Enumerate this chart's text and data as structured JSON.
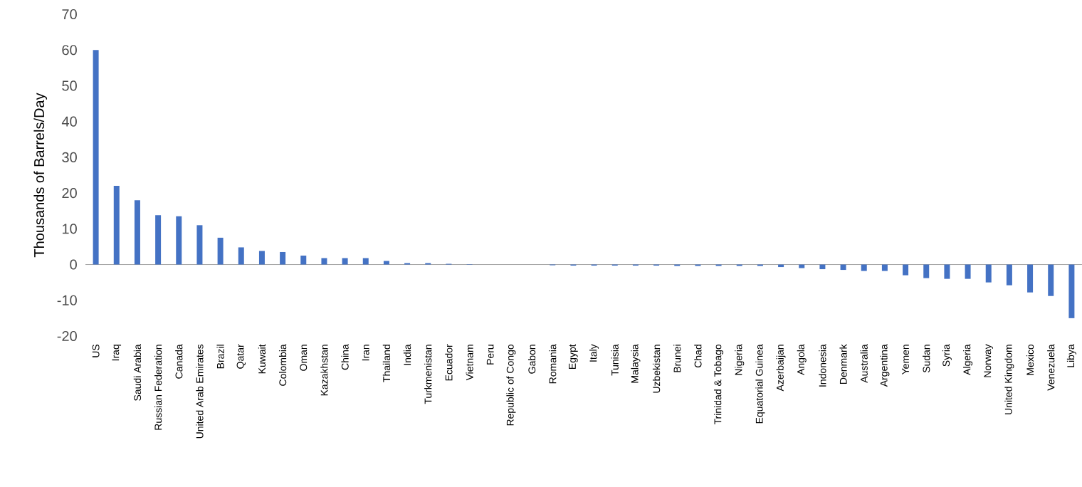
{
  "chart_data": {
    "type": "bar",
    "ylabel": "Thousands of Barrels/Day",
    "color": "#4472c4",
    "ylim": [
      -20,
      70
    ],
    "yticks": [
      -20,
      -10,
      0,
      10,
      20,
      30,
      40,
      50,
      60,
      70
    ],
    "categories": [
      "US",
      "Iraq",
      "Saudi Arabia",
      "Russian Federation",
      "Canada",
      "United Arab Emirates",
      "Brazil",
      "Qatar",
      "Kuwait",
      "Colombia",
      "Oman",
      "Kazakhstan",
      "China",
      "Iran",
      "Thailand",
      "India",
      "Turkmenistan",
      "Ecuador",
      "Vietnam",
      "Peru",
      "Republic of Congo",
      "Gabon",
      "Romania",
      "Egypt",
      "Italy",
      "Tunisia",
      "Malaysia",
      "Uzbekistan",
      "Brunei",
      "Chad",
      "Trinidad & Tobago",
      "Nigeria",
      "Equatorial Guinea",
      "Azerbaijan",
      "Angola",
      "Indonesia",
      "Denmark",
      "Australia",
      "Argentina",
      "Yemen",
      "Sudan",
      "Syria",
      "Algeria",
      "Norway",
      "United Kingdom",
      "Mexico",
      "Venezuela",
      "Libya"
    ],
    "values": [
      60,
      22,
      18,
      13.8,
      13.5,
      11,
      7.5,
      4.8,
      3.8,
      3.5,
      2.5,
      1.8,
      1.8,
      1.8,
      1.0,
      0.4,
      0.4,
      0.2,
      0.1,
      0,
      0,
      0,
      -0.2,
      -0.3,
      -0.3,
      -0.3,
      -0.3,
      -0.3,
      -0.4,
      -0.4,
      -0.4,
      -0.4,
      -0.4,
      -0.7,
      -1.0,
      -1.3,
      -1.5,
      -1.8,
      -1.8,
      -3.0,
      -3.8,
      -4.0,
      -4.0,
      -5.0,
      -5.8,
      -7.8,
      -8.8,
      -15
    ]
  }
}
